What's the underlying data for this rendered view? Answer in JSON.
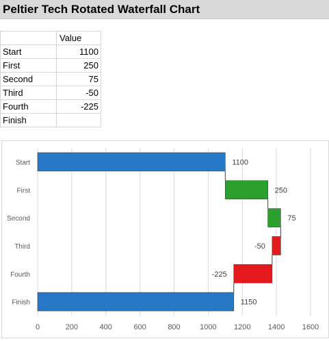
{
  "sheet": {
    "title": "Peltier Tech Rotated Waterfall Chart",
    "header": "Value",
    "rows": [
      {
        "label": "Start",
        "value": "1100"
      },
      {
        "label": "First",
        "value": "250"
      },
      {
        "label": "Second",
        "value": "75"
      },
      {
        "label": "Third",
        "value": "-50"
      },
      {
        "label": "Fourth",
        "value": "-225"
      },
      {
        "label": "Finish",
        "value": ""
      }
    ]
  },
  "colors": {
    "total": "#2878c8",
    "increase": "#2ca02c",
    "decrease": "#e41a1c",
    "grid": "#d9d9d9",
    "connector": "#404040"
  },
  "chart_data": {
    "type": "bar",
    "orientation": "horizontal",
    "categories": [
      "Start",
      "First",
      "Second",
      "Third",
      "Fourth",
      "Finish"
    ],
    "values": [
      1100,
      250,
      75,
      -50,
      -225,
      1150
    ],
    "bar_start": [
      0,
      1100,
      1350,
      1425,
      1375,
      0
    ],
    "bar_end": [
      1100,
      1350,
      1425,
      1375,
      1150,
      1150
    ],
    "bar_kind": [
      "total",
      "increase",
      "increase",
      "decrease",
      "decrease",
      "total"
    ],
    "data_labels": [
      "1100",
      "250",
      "75",
      "-50",
      "-225",
      "1150"
    ],
    "xlim": [
      0,
      1600
    ],
    "x_ticks": [
      0,
      200,
      400,
      600,
      800,
      1000,
      1200,
      1400,
      1600
    ],
    "grid": true
  }
}
